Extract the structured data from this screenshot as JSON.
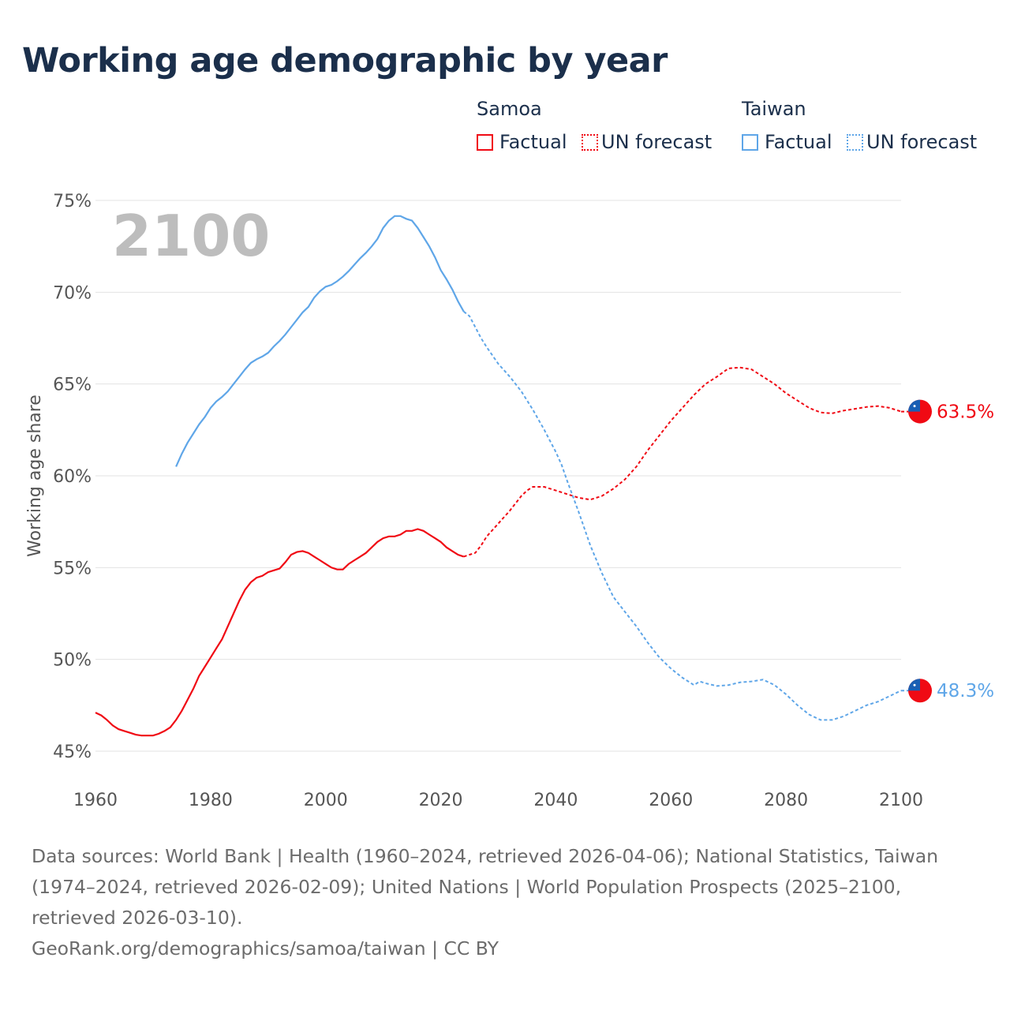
{
  "colors": {
    "samoa": "#f00a14",
    "taiwan": "#5fa6e8",
    "grid": "#e3e3e3",
    "text": "#1b2f4b",
    "tick": "#555555"
  },
  "chart_data": {
    "type": "line",
    "title": "Working age demographic by year",
    "xlabel": "",
    "ylabel": "Working age share",
    "xlim": [
      1960,
      2100
    ],
    "ylim": [
      45,
      75
    ],
    "x_ticks": [
      "1960",
      "1980",
      "2000",
      "2020",
      "2040",
      "2060",
      "2080",
      "2100"
    ],
    "y_ticks": [
      "45%",
      "50%",
      "55%",
      "60%",
      "65%",
      "70%",
      "75%"
    ],
    "year_label": "2100",
    "legend": {
      "groups": [
        {
          "name": "Samoa",
          "factual": "Factual",
          "forecast": "UN forecast"
        },
        {
          "name": "Taiwan",
          "factual": "Factual",
          "forecast": "UN forecast"
        }
      ],
      "placement": "top-right"
    },
    "series": [
      {
        "name": "Samoa",
        "end_label": "63.5%",
        "factual": [
          [
            1960,
            47.1
          ],
          [
            1961,
            46.95
          ],
          [
            1962,
            46.7
          ],
          [
            1963,
            46.4
          ],
          [
            1964,
            46.2
          ],
          [
            1965,
            46.1
          ],
          [
            1966,
            46.0
          ],
          [
            1967,
            45.9
          ],
          [
            1968,
            45.85
          ],
          [
            1969,
            45.85
          ],
          [
            1970,
            45.85
          ],
          [
            1971,
            45.95
          ],
          [
            1972,
            46.1
          ],
          [
            1973,
            46.3
          ],
          [
            1974,
            46.7
          ],
          [
            1975,
            47.2
          ],
          [
            1976,
            47.8
          ],
          [
            1977,
            48.4
          ],
          [
            1978,
            49.1
          ],
          [
            1979,
            49.6
          ],
          [
            1980,
            50.1
          ],
          [
            1981,
            50.6
          ],
          [
            1982,
            51.1
          ],
          [
            1983,
            51.8
          ],
          [
            1984,
            52.5
          ],
          [
            1985,
            53.2
          ],
          [
            1986,
            53.8
          ],
          [
            1987,
            54.2
          ],
          [
            1988,
            54.45
          ],
          [
            1989,
            54.55
          ],
          [
            1990,
            54.75
          ],
          [
            1991,
            54.85
          ],
          [
            1992,
            54.95
          ],
          [
            1993,
            55.3
          ],
          [
            1994,
            55.7
          ],
          [
            1995,
            55.85
          ],
          [
            1996,
            55.9
          ],
          [
            1997,
            55.8
          ],
          [
            1998,
            55.6
          ],
          [
            1999,
            55.4
          ],
          [
            2000,
            55.2
          ],
          [
            2001,
            55.0
          ],
          [
            2002,
            54.9
          ],
          [
            2003,
            54.9
          ],
          [
            2004,
            55.2
          ],
          [
            2005,
            55.4
          ],
          [
            2006,
            55.6
          ],
          [
            2007,
            55.8
          ],
          [
            2008,
            56.1
          ],
          [
            2009,
            56.4
          ],
          [
            2010,
            56.6
          ],
          [
            2011,
            56.7
          ],
          [
            2012,
            56.7
          ],
          [
            2013,
            56.8
          ],
          [
            2014,
            57.0
          ],
          [
            2015,
            57.0
          ],
          [
            2016,
            57.1
          ],
          [
            2017,
            57.0
          ],
          [
            2018,
            56.8
          ],
          [
            2019,
            56.6
          ],
          [
            2020,
            56.4
          ],
          [
            2021,
            56.1
          ],
          [
            2022,
            55.9
          ],
          [
            2023,
            55.7
          ],
          [
            2024,
            55.6
          ]
        ],
        "forecast": [
          [
            2024,
            55.6
          ],
          [
            2025,
            55.7
          ],
          [
            2026,
            55.8
          ],
          [
            2027,
            56.2
          ],
          [
            2028,
            56.7
          ],
          [
            2030,
            57.4
          ],
          [
            2032,
            58.1
          ],
          [
            2034,
            58.9
          ],
          [
            2035,
            59.2
          ],
          [
            2036,
            59.4
          ],
          [
            2038,
            59.4
          ],
          [
            2040,
            59.2
          ],
          [
            2042,
            59.0
          ],
          [
            2044,
            58.8
          ],
          [
            2046,
            58.7
          ],
          [
            2048,
            58.9
          ],
          [
            2050,
            59.3
          ],
          [
            2052,
            59.8
          ],
          [
            2054,
            60.5
          ],
          [
            2056,
            61.4
          ],
          [
            2058,
            62.2
          ],
          [
            2060,
            63.0
          ],
          [
            2062,
            63.7
          ],
          [
            2064,
            64.4
          ],
          [
            2066,
            65.0
          ],
          [
            2068,
            65.4
          ],
          [
            2070,
            65.85
          ],
          [
            2072,
            65.9
          ],
          [
            2074,
            65.8
          ],
          [
            2076,
            65.4
          ],
          [
            2078,
            65.0
          ],
          [
            2080,
            64.5
          ],
          [
            2082,
            64.1
          ],
          [
            2084,
            63.7
          ],
          [
            2086,
            63.45
          ],
          [
            2088,
            63.4
          ],
          [
            2090,
            63.55
          ],
          [
            2092,
            63.65
          ],
          [
            2094,
            63.75
          ],
          [
            2096,
            63.8
          ],
          [
            2098,
            63.7
          ],
          [
            2100,
            63.5
          ]
        ]
      },
      {
        "name": "Taiwan",
        "end_label": "48.3%",
        "factual": [
          [
            1974,
            60.5
          ],
          [
            1975,
            61.2
          ],
          [
            1976,
            61.8
          ],
          [
            1977,
            62.3
          ],
          [
            1978,
            62.8
          ],
          [
            1979,
            63.2
          ],
          [
            1980,
            63.7
          ],
          [
            1981,
            64.05
          ],
          [
            1982,
            64.3
          ],
          [
            1983,
            64.6
          ],
          [
            1984,
            65.0
          ],
          [
            1985,
            65.4
          ],
          [
            1986,
            65.8
          ],
          [
            1987,
            66.15
          ],
          [
            1988,
            66.35
          ],
          [
            1989,
            66.5
          ],
          [
            1990,
            66.7
          ],
          [
            1991,
            67.05
          ],
          [
            1992,
            67.35
          ],
          [
            1993,
            67.7
          ],
          [
            1994,
            68.1
          ],
          [
            1995,
            68.5
          ],
          [
            1996,
            68.9
          ],
          [
            1997,
            69.2
          ],
          [
            1998,
            69.7
          ],
          [
            1999,
            70.05
          ],
          [
            2000,
            70.3
          ],
          [
            2001,
            70.4
          ],
          [
            2002,
            70.6
          ],
          [
            2003,
            70.85
          ],
          [
            2004,
            71.15
          ],
          [
            2005,
            71.5
          ],
          [
            2006,
            71.85
          ],
          [
            2007,
            72.15
          ],
          [
            2008,
            72.5
          ],
          [
            2009,
            72.9
          ],
          [
            2010,
            73.5
          ],
          [
            2011,
            73.9
          ],
          [
            2012,
            74.15
          ],
          [
            2013,
            74.15
          ],
          [
            2014,
            74.0
          ],
          [
            2015,
            73.9
          ],
          [
            2016,
            73.5
          ],
          [
            2017,
            73.0
          ],
          [
            2018,
            72.5
          ],
          [
            2019,
            71.9
          ],
          [
            2020,
            71.2
          ],
          [
            2021,
            70.7
          ],
          [
            2022,
            70.15
          ],
          [
            2023,
            69.5
          ],
          [
            2024,
            68.95
          ]
        ],
        "forecast": [
          [
            2024,
            68.95
          ],
          [
            2025,
            68.7
          ],
          [
            2026,
            68.1
          ],
          [
            2027,
            67.5
          ],
          [
            2028,
            67.0
          ],
          [
            2030,
            66.1
          ],
          [
            2032,
            65.4
          ],
          [
            2034,
            64.6
          ],
          [
            2036,
            63.6
          ],
          [
            2038,
            62.5
          ],
          [
            2040,
            61.3
          ],
          [
            2041,
            60.6
          ],
          [
            2042,
            59.7
          ],
          [
            2044,
            58.0
          ],
          [
            2046,
            56.2
          ],
          [
            2048,
            54.7
          ],
          [
            2050,
            53.4
          ],
          [
            2052,
            52.6
          ],
          [
            2054,
            51.8
          ],
          [
            2056,
            50.9
          ],
          [
            2058,
            50.1
          ],
          [
            2060,
            49.5
          ],
          [
            2062,
            49.0
          ],
          [
            2064,
            48.6
          ],
          [
            2065,
            48.8
          ],
          [
            2066,
            48.7
          ],
          [
            2068,
            48.55
          ],
          [
            2070,
            48.6
          ],
          [
            2072,
            48.75
          ],
          [
            2074,
            48.8
          ],
          [
            2076,
            48.9
          ],
          [
            2078,
            48.6
          ],
          [
            2080,
            48.1
          ],
          [
            2082,
            47.5
          ],
          [
            2084,
            47.0
          ],
          [
            2086,
            46.7
          ],
          [
            2088,
            46.7
          ],
          [
            2090,
            46.9
          ],
          [
            2092,
            47.2
          ],
          [
            2094,
            47.5
          ],
          [
            2096,
            47.7
          ],
          [
            2098,
            48.0
          ],
          [
            2100,
            48.3
          ]
        ]
      }
    ]
  },
  "footer": {
    "sources": "Data sources: World Bank | Health (1960–2024, retrieved 2026-04-06); National Statistics, Taiwan (1974–2024, retrieved 2026-02-09); United Nations | World Population Prospects (2025–2100, retrieved 2026-03-10).",
    "credit": "GeoRank.org/demographics/samoa/taiwan | CC BY"
  }
}
